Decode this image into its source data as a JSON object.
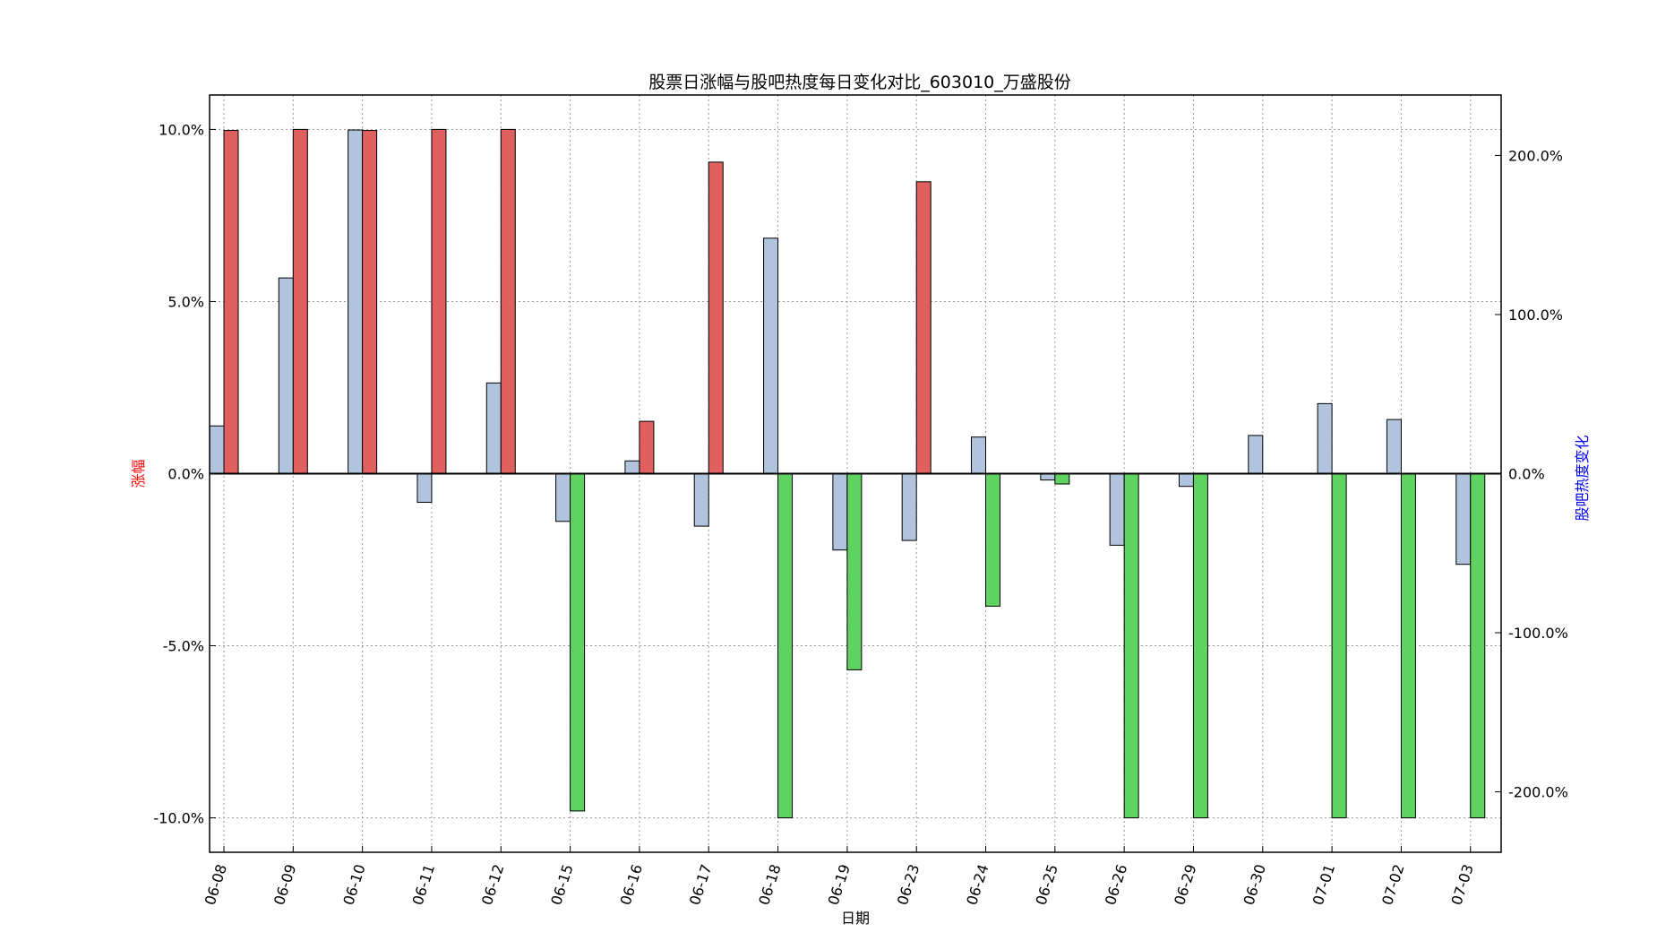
{
  "chart_data": {
    "type": "bar",
    "title": "股票日涨幅与股吧热度每日变化对比_603010_万盛股份",
    "xlabel": "日期",
    "ylabel_left": "涨幅",
    "ylabel_right": "股吧热度变化",
    "categories": [
      "06-08",
      "06-09",
      "06-10",
      "06-11",
      "06-12",
      "06-15",
      "06-16",
      "06-17",
      "06-18",
      "06-19",
      "06-23",
      "06-24",
      "06-25",
      "06-26",
      "06-29",
      "06-30",
      "07-01",
      "07-02",
      "07-03"
    ],
    "left_axis": {
      "ylim": [
        -11.0,
        11.0
      ],
      "ticks": [
        10,
        5,
        0,
        -5,
        -10
      ],
      "tick_labels": [
        "10.0%",
        "5.0%",
        "0.0%",
        "-5.0%",
        "-10.0%"
      ]
    },
    "right_axis": {
      "ylim": [
        -238,
        238
      ],
      "ticks": [
        200,
        100,
        0,
        -100,
        -200
      ],
      "tick_labels": [
        "200.0%",
        "100.0%",
        "0.0%",
        "-100.0%",
        "-200.0%"
      ]
    },
    "series": [
      {
        "axis": "left",
        "values": [
          9.97,
          10.0,
          9.97,
          10.0,
          10.0,
          -9.8,
          1.52,
          9.05,
          -10.0,
          -5.7,
          8.48,
          -3.85,
          -0.3,
          -10.0,
          -10.0,
          0.0,
          -10.0,
          -10.0,
          -10.0
        ]
      },
      {
        "axis": "right",
        "values": [
          30,
          123,
          216,
          -18,
          57,
          -30,
          8,
          -33,
          148,
          -48,
          -42,
          23,
          -4,
          -45,
          -8,
          24,
          44,
          34,
          -57
        ]
      }
    ],
    "colors": {
      "rise": "#e06060",
      "fall": "#5fd35f",
      "heat": "#b0c4de",
      "ylabel_left_color": "#ff0000",
      "ylabel_right_color": "#0000ff"
    },
    "grid": true
  }
}
